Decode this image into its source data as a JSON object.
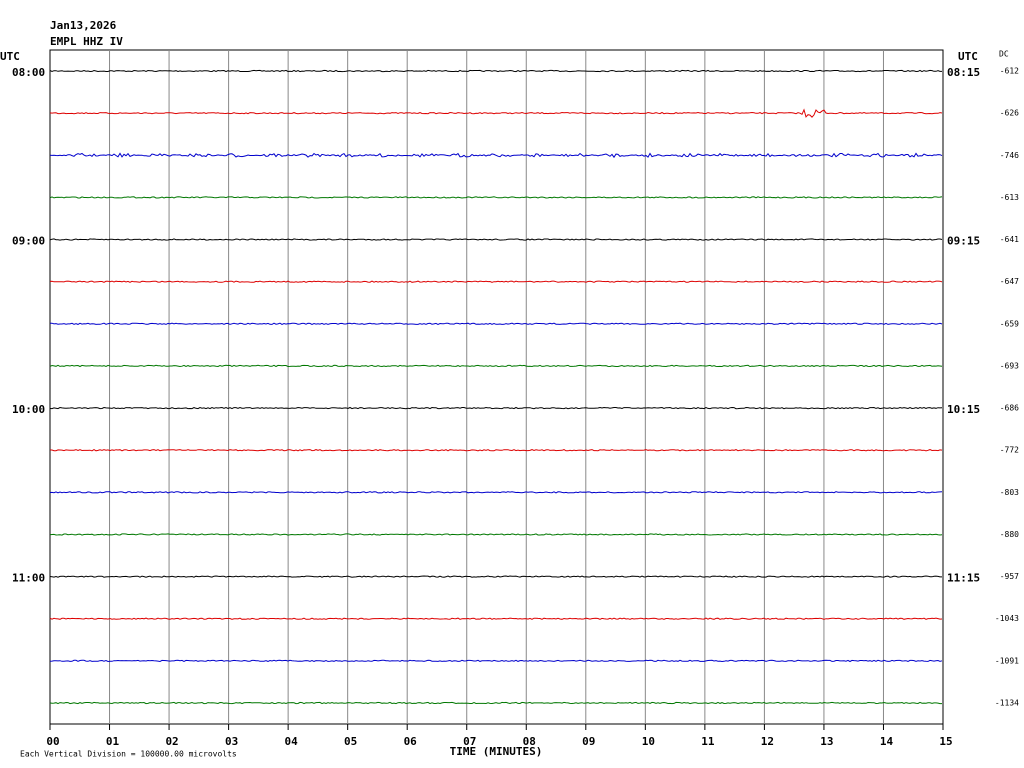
{
  "header": {
    "date": "Jan13,2026",
    "station": "EMPL HHZ IV",
    "left_zone": "UTC",
    "right_zone": "UTC",
    "offset_label": "DC"
  },
  "hour_labels": [
    {
      "left": "08:00",
      "right": "08:15"
    },
    {
      "left": "09:00",
      "right": "09:15"
    },
    {
      "left": "10:00",
      "right": "10:15"
    },
    {
      "left": "11:00",
      "right": "11:15"
    }
  ],
  "offsets": [
    "-612",
    "-626",
    "-746",
    "-613",
    "-641",
    "-647",
    "-659",
    "-693",
    "-686",
    "-772",
    "-803",
    "-880",
    "-957",
    "-1043",
    "-1091",
    "-1134"
  ],
  "x_ticks": [
    "00",
    "01",
    "02",
    "03",
    "04",
    "05",
    "06",
    "07",
    "08",
    "09",
    "10",
    "11",
    "12",
    "13",
    "14",
    "15"
  ],
  "x_title": "TIME (MINUTES)",
  "scale_note": "Each Vertical Division = 100000.00 microvolts"
}
